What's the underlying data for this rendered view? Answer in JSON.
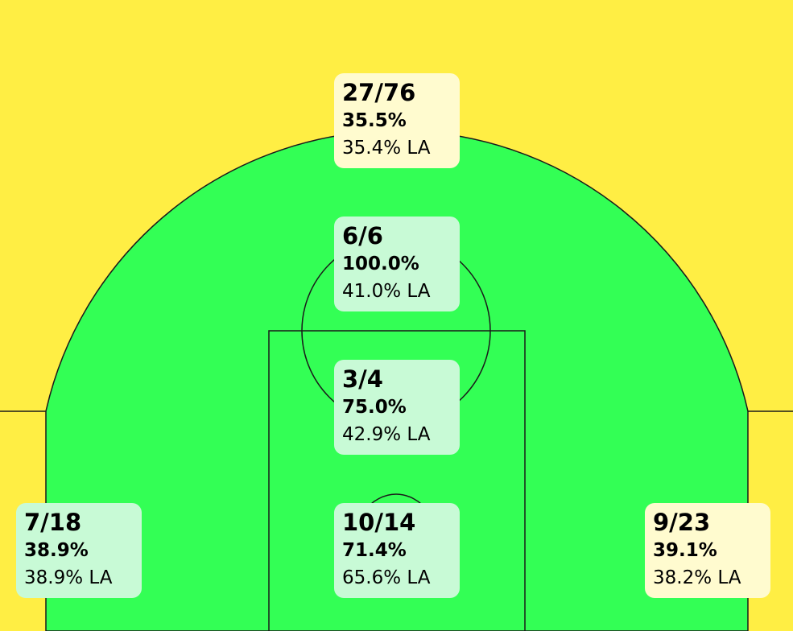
{
  "chart_data": {
    "type": "shot_chart",
    "zone_colors": {
      "above_average": "#33FF55",
      "below_average": "#FFEE44"
    },
    "line_color": "#1a1a1a",
    "zones": [
      {
        "id": "three-point-top",
        "made_attempts": "27/76",
        "pct": "35.5%",
        "league": "35.4% LA",
        "box_color": "#FFFBCF"
      },
      {
        "id": "free-throw-upper",
        "made_attempts": "6/6",
        "pct": "100.0%",
        "league": "41.0% LA",
        "box_color": "#C8FAD6"
      },
      {
        "id": "paint-mid",
        "made_attempts": "3/4",
        "pct": "75.0%",
        "league": "42.9% LA",
        "box_color": "#C8FAD6"
      },
      {
        "id": "restricted-area",
        "made_attempts": "10/14",
        "pct": "71.4%",
        "league": "65.6% LA",
        "box_color": "#C8FAD6"
      },
      {
        "id": "left-baseline",
        "made_attempts": "7/18",
        "pct": "38.9%",
        "league": "38.9% LA",
        "box_color": "#C8FAD6"
      },
      {
        "id": "right-corner-three",
        "made_attempts": "9/23",
        "pct": "39.1%",
        "league": "38.2% LA",
        "box_color": "#FFFBCF"
      }
    ]
  }
}
